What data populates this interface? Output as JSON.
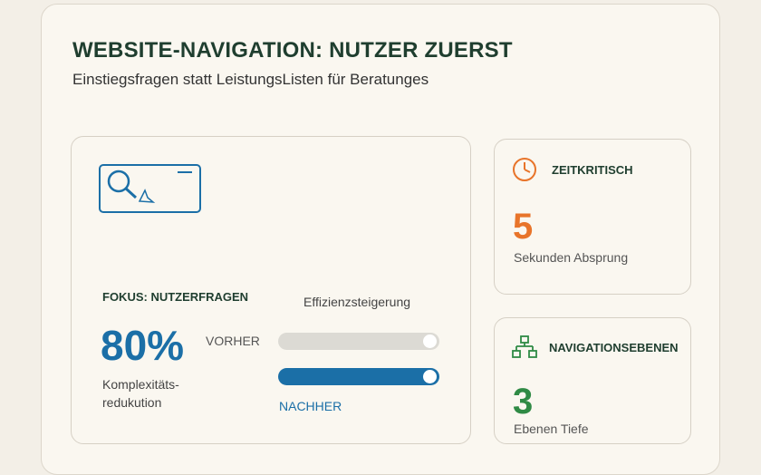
{
  "header": {
    "title": "WEBSITE-NAVIGATION: NUTZER ZUERST",
    "subtitle": "Einstiegsfragen statt LeistungsListen für Beratunges"
  },
  "focus": {
    "label": "FOKUS: NUTZERFRAGEN",
    "percent": "80%",
    "percent_desc": "Komplexitäts-\nredukution",
    "efficiency_label": "Effizienzsteigerung",
    "before_label": "VORHER",
    "after_label": "NACHHER"
  },
  "metric_time": {
    "heading": "ZEITKRITISCH",
    "value": "5",
    "desc": "Sekunden Absprung",
    "icon": "clock-icon"
  },
  "metric_nav": {
    "heading": "NAVIGATIONSEBENEN",
    "value": "3",
    "desc": "Ebenen Tiefe",
    "icon": "sitemap-icon"
  },
  "colors": {
    "accent_blue": "#1b6fa7",
    "accent_orange": "#e8742a",
    "accent_green": "#2f8a45",
    "heading": "#1f3e2f"
  }
}
